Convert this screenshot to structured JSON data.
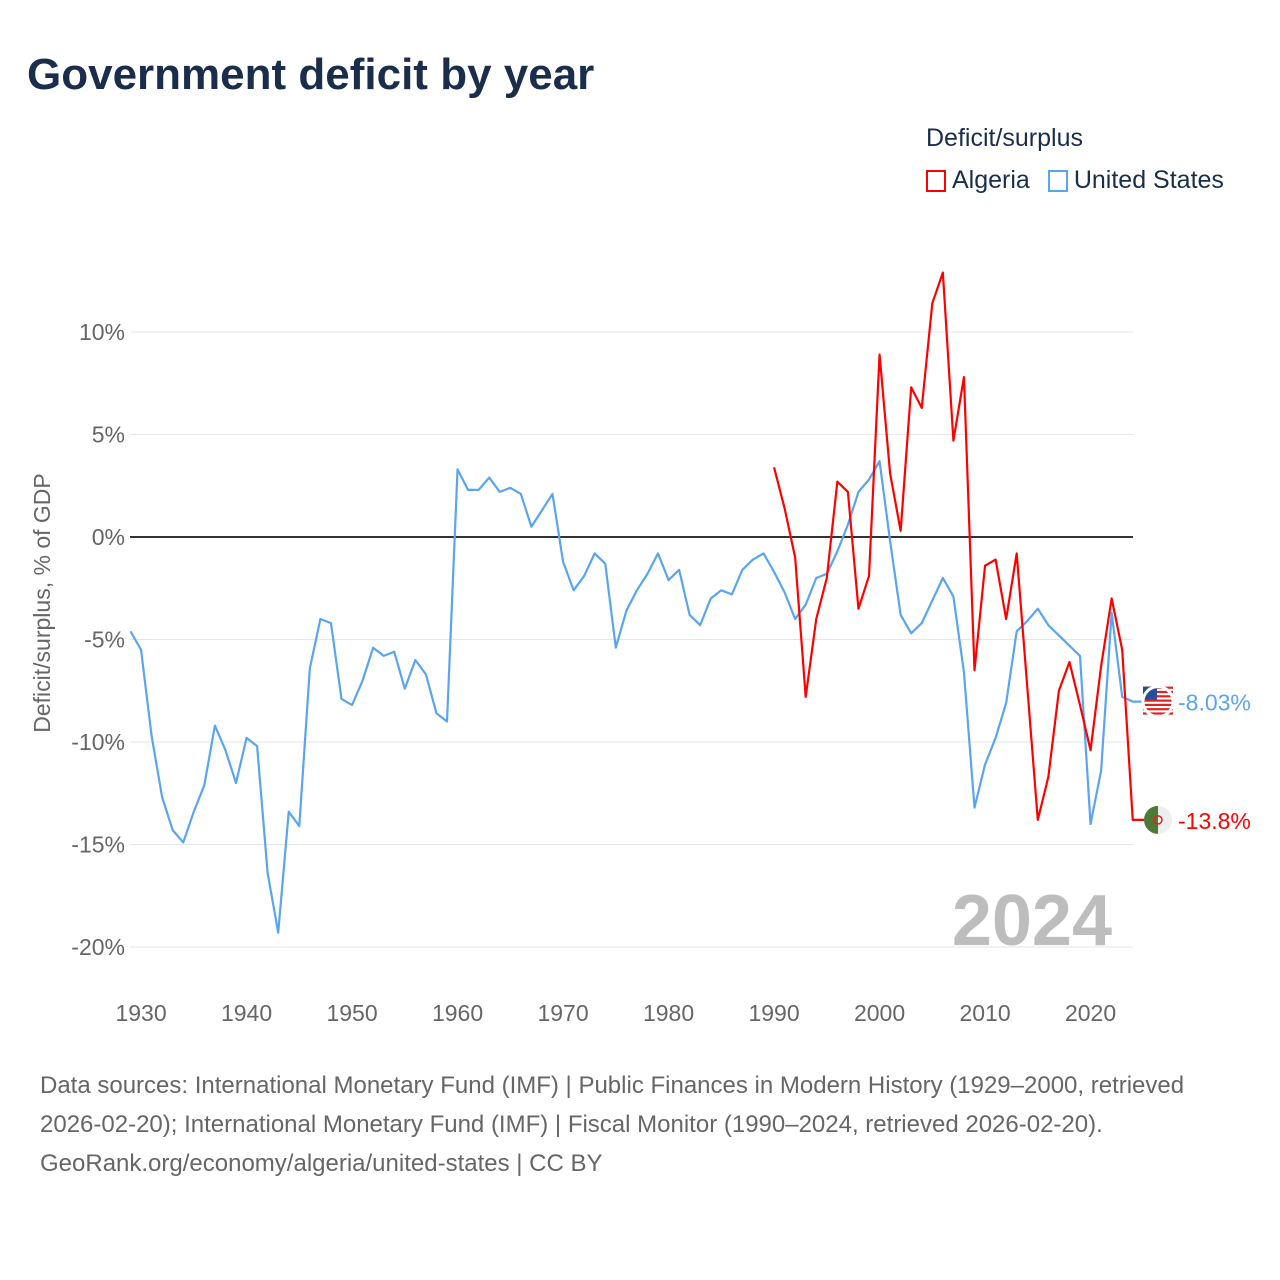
{
  "title": "Government deficit by year",
  "legend": {
    "title": "Deficit/surplus",
    "items": [
      {
        "name": "Algeria",
        "color": "#ff0000"
      },
      {
        "name": "United States",
        "color": "#5aa5ef"
      }
    ]
  },
  "footer": {
    "sources": "Data sources: International Monetary Fund (IMF) | Public Finances in Modern History (1929–2000, retrieved 2026-02-20); International Monetary Fund (IMF) | Fiscal Monitor (1990–2024, retrieved 2026-02-20).",
    "credit": "GeoRank.org/economy/algeria/united-states | CC BY"
  },
  "chart_data": {
    "type": "line",
    "title": "Government deficit by year",
    "ylabel": "Deficit/surplus, % of GDP",
    "xlim": [
      1929,
      2024
    ],
    "ylim": [
      -20,
      13
    ],
    "xticks": [
      1930,
      1940,
      1950,
      1960,
      1970,
      1980,
      1990,
      2000,
      2010,
      2020
    ],
    "yticks": [
      {
        "v": 10,
        "l": "10%"
      },
      {
        "v": 5,
        "l": "5%"
      },
      {
        "v": 0,
        "l": "0%"
      },
      {
        "v": -5,
        "l": "-5%"
      },
      {
        "v": -10,
        "l": "-10%"
      },
      {
        "v": -15,
        "l": "-15%"
      },
      {
        "v": -20,
        "l": "-20%"
      }
    ],
    "year_label": "2024",
    "series": [
      {
        "name": "United States",
        "color": "#5aa5ef",
        "start": 1929,
        "end_label": "-8.03%",
        "values": [
          -4.6,
          -5.5,
          -9.7,
          -12.7,
          -14.3,
          -14.9,
          -13.4,
          -12.1,
          -9.2,
          -10.4,
          -12.0,
          -9.8,
          -10.2,
          -16.4,
          -19.3,
          -13.4,
          -14.1,
          -6.4,
          -4.0,
          -4.2,
          -7.9,
          -8.2,
          -7.0,
          -5.4,
          -5.8,
          -5.6,
          -7.4,
          -6.0,
          -6.7,
          -8.6,
          -9.0,
          3.3,
          2.3,
          2.3,
          2.9,
          2.2,
          2.4,
          2.1,
          0.5,
          1.3,
          2.1,
          -1.2,
          -2.6,
          -1.9,
          -0.8,
          -1.3,
          -5.4,
          -3.6,
          -2.6,
          -1.8,
          -0.8,
          -2.1,
          -1.6,
          -3.8,
          -4.3,
          -3.0,
          -2.6,
          -2.8,
          -1.6,
          -1.1,
          -0.8,
          -1.7,
          -2.7,
          -4.0,
          -3.3,
          -2.0,
          -1.8,
          -0.7,
          0.6,
          2.2,
          2.8,
          3.7,
          -0.2,
          -3.8,
          -4.7,
          -4.2,
          -3.1,
          -2.0,
          -2.9,
          -6.6,
          -13.2,
          -11.1,
          -9.8,
          -8.1,
          -4.6,
          -4.1,
          -3.5,
          -4.3,
          -4.8,
          -5.3,
          -5.8,
          -14.0,
          -11.4,
          -3.7,
          -7.8,
          -8.03
        ]
      },
      {
        "name": "Algeria",
        "color": "#ff0000",
        "start": 1990,
        "end_label": "-13.8%",
        "values": [
          3.4,
          1.4,
          -1.0,
          -7.8,
          -4.0,
          -2.0,
          2.7,
          2.2,
          -3.5,
          -1.9,
          8.9,
          3.1,
          0.3,
          7.3,
          6.3,
          11.4,
          12.9,
          4.7,
          7.8,
          -6.5,
          -1.4,
          -1.1,
          -4.0,
          -0.8,
          -7.3,
          -13.8,
          -11.7,
          -7.5,
          -6.1,
          -8.2,
          -10.4,
          -6.3,
          -3.0,
          -5.5,
          -13.8
        ]
      }
    ]
  }
}
